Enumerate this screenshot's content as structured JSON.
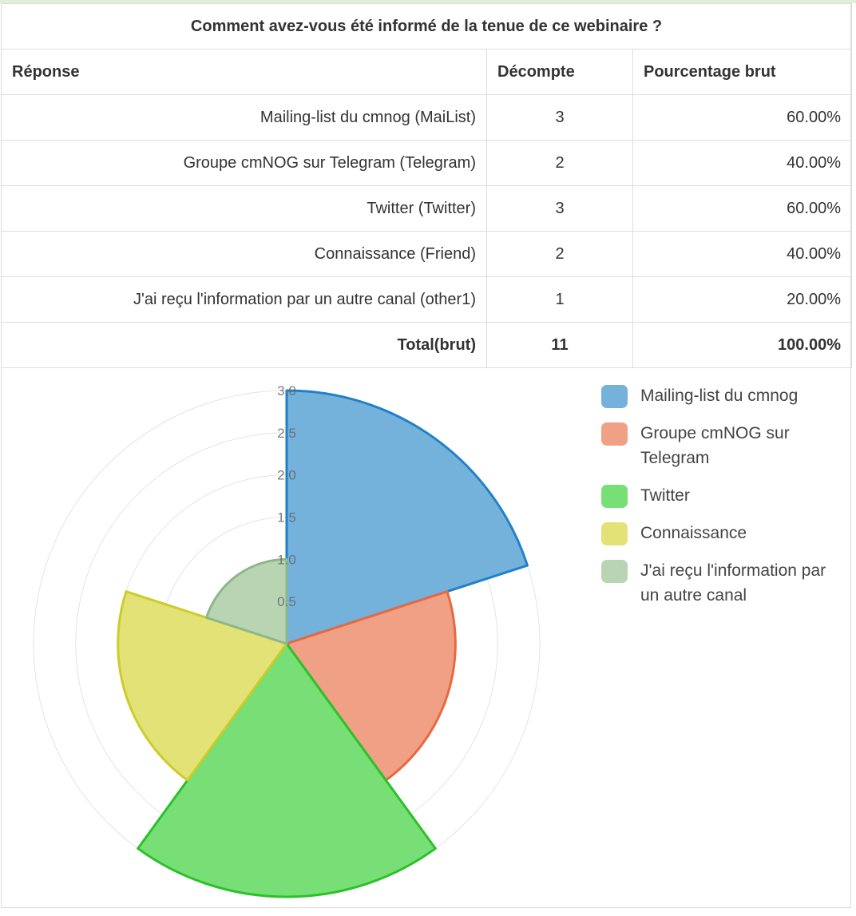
{
  "table": {
    "title": "Comment avez-vous été informé de la tenue de ce webinaire ?",
    "headers": [
      "Réponse",
      "Décompte",
      "Pourcentage brut"
    ],
    "rows": [
      [
        "Mailing-list du cmnog (MaiList)",
        "3",
        "60.00%"
      ],
      [
        "Groupe  cmNOG sur Telegram (Telegram)",
        "2",
        "40.00%"
      ],
      [
        "Twitter (Twitter)",
        "3",
        "60.00%"
      ],
      [
        "Connaissance (Friend)",
        "2",
        "40.00%"
      ],
      [
        "J'ai reçu l'information par un autre canal (other1)",
        "1",
        "20.00%"
      ]
    ],
    "total": [
      "Total(brut)",
      "11",
      "100.00%"
    ]
  },
  "chart_data": {
    "type": "polar-area",
    "categories": [
      "Mailing-list du cmnog",
      "Groupe  cmNOG sur Telegram",
      "Twitter",
      "Connaissance",
      "J'ai reçu l'information par un autre canal"
    ],
    "values": [
      3,
      2,
      3,
      2,
      1
    ],
    "rlim": [
      0,
      3.0
    ],
    "ticks": [
      "0.5",
      "1.0",
      "1.5",
      "2.0",
      "2.5",
      "3.0"
    ],
    "legend_position": "right",
    "fill_colors": [
      "#74b2dc",
      "#f0a085",
      "#77df75",
      "#e2e276",
      "#b8d4b3"
    ],
    "stroke_colors": [
      "#1f82c9",
      "#e8683f",
      "#2ac22a",
      "#cccc2a",
      "#8cb889"
    ]
  }
}
